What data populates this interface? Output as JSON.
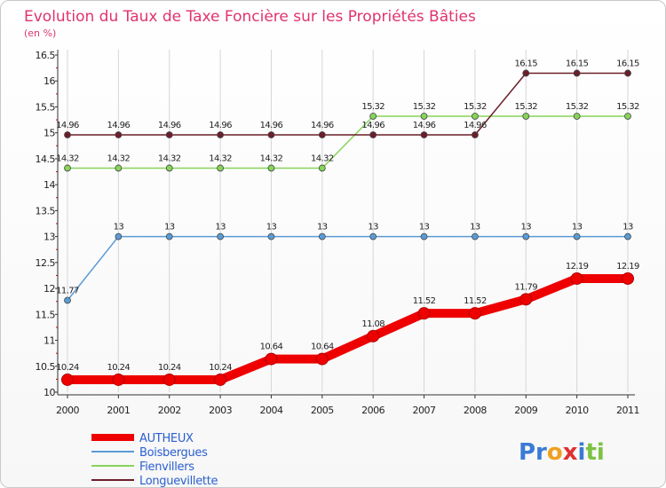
{
  "chart_data": {
    "type": "line",
    "title": "Evolution du Taux de Taxe Foncière sur les Propriétés Bâties",
    "subtitle": "(en %)",
    "xlabel": "",
    "ylabel": "",
    "x": [
      "2000",
      "2001",
      "2002",
      "2003",
      "2004",
      "2005",
      "2006",
      "2007",
      "2008",
      "2009",
      "2010",
      "2011"
    ],
    "ylim": [
      10,
      16.5
    ],
    "yticks": [
      "10",
      "10.5",
      "11",
      "11.5",
      "12",
      "12.5",
      "13",
      "13.5",
      "14",
      "14.5",
      "15",
      "15.5",
      "16",
      "16.5"
    ],
    "grid": "vertical",
    "legend_position": "bottom-left",
    "series": [
      {
        "name": "AUTHEUX",
        "color": "#ee0000",
        "values": [
          10.24,
          10.24,
          10.24,
          10.24,
          10.64,
          10.64,
          11.08,
          11.52,
          11.52,
          11.79,
          12.19,
          12.19
        ],
        "labels": [
          "10.24",
          "10.24",
          "10.24",
          "10.24",
          "10.64",
          "10.64",
          "11.08",
          "11.52",
          "11.52",
          "11.79",
          "12.19",
          "12.19"
        ]
      },
      {
        "name": "Boisbergues",
        "color": "#5b9bd5",
        "values": [
          11.77,
          13,
          13,
          13,
          13,
          13,
          13,
          13,
          13,
          13,
          13,
          13
        ],
        "labels": [
          "11.77",
          "13",
          "13",
          "13",
          "13",
          "13",
          "13",
          "13",
          "13",
          "13",
          "13",
          "13"
        ]
      },
      {
        "name": "Fienvillers",
        "color": "#86d45a",
        "values": [
          14.32,
          14.32,
          14.32,
          14.32,
          14.32,
          14.32,
          15.32,
          15.32,
          15.32,
          15.32,
          15.32,
          15.32
        ],
        "labels": [
          "14.32",
          "14.32",
          "14.32",
          "14.32",
          "14.32",
          "14.32",
          "15.32",
          "15.32",
          "15.32",
          "15.32",
          "15.32",
          "15.32"
        ]
      },
      {
        "name": "Longuevillette",
        "color": "#6b1f2a",
        "values": [
          14.96,
          14.96,
          14.96,
          14.96,
          14.96,
          14.96,
          14.96,
          14.96,
          14.96,
          16.15,
          16.15,
          16.15
        ],
        "labels": [
          "14.96",
          "14.96",
          "14.96",
          "14.96",
          "14.96",
          "14.96",
          "14.96",
          "14.96",
          "14.96",
          "16.15",
          "16.15",
          "16.15"
        ]
      }
    ]
  },
  "brand": {
    "parts": [
      "Pr",
      "o",
      "x",
      "i",
      "ti"
    ],
    "colors": [
      "#3a7bd5",
      "#f0a020",
      "#e03030",
      "#3a7bd5",
      "#7cc242"
    ]
  }
}
